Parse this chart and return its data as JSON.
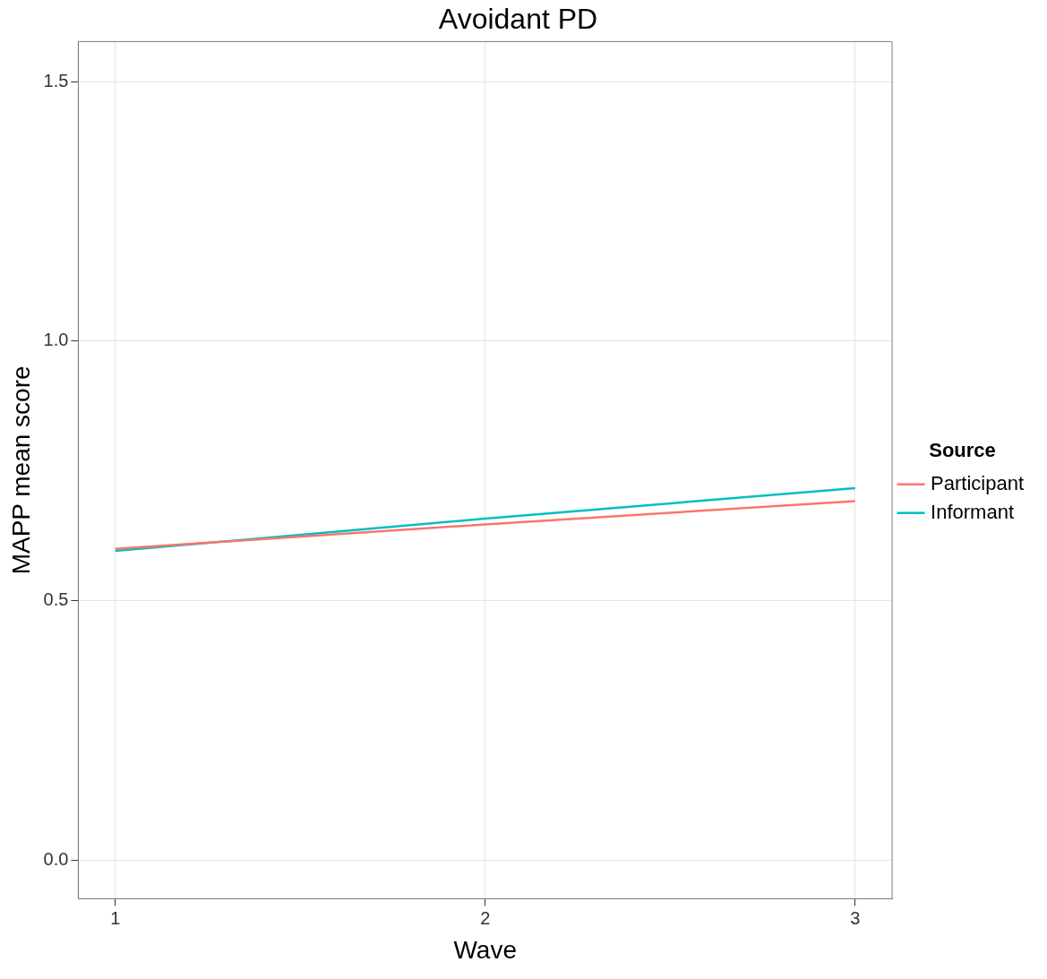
{
  "chart_data": {
    "type": "line",
    "title": "Avoidant PD",
    "xlabel": "Wave",
    "ylabel": "MAPP mean score",
    "legend_title": "Source",
    "x": [
      1,
      2,
      3
    ],
    "series": [
      {
        "name": "Participant",
        "color": "#f8766d",
        "values": [
          0.6,
          0.647,
          0.692
        ]
      },
      {
        "name": "Informant",
        "color": "#00bfc4",
        "values": [
          0.596,
          0.658,
          0.717
        ]
      }
    ],
    "xlim": [
      0.9,
      3.1
    ],
    "xticks": [
      1,
      2,
      3
    ],
    "ylim": [
      -0.074,
      1.577
    ],
    "yticks": [
      {
        "value": 0,
        "label": "0.0"
      },
      0.5,
      {
        "value": 1,
        "label": "1.0"
      },
      1.5
    ],
    "grid": true,
    "legend": "right",
    "marker": "none",
    "line_style": "solid"
  }
}
